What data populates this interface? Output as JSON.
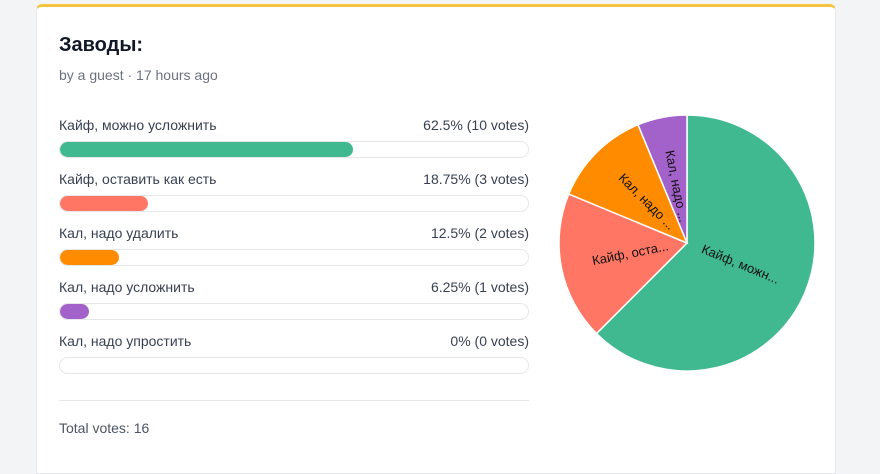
{
  "poll": {
    "title": "Заводы:",
    "meta": "by a guest · 17 hours ago",
    "total": "Total votes: 16"
  },
  "options": [
    {
      "label": "Кайф, можно усложнить",
      "result": "62.5% (10 votes)",
      "pct": 62.5,
      "color": "#41b990",
      "pie_label": "Кайф, можн..."
    },
    {
      "label": "Кайф, оставить как есть",
      "result": "18.75% (3 votes)",
      "pct": 18.75,
      "color": "#ff7665",
      "pie_label": "Кайф, оста..."
    },
    {
      "label": "Кал, надо удалить",
      "result": "12.5% (2 votes)",
      "pct": 12.5,
      "color": "#ff8c00",
      "pie_label": "Кал, надо ..."
    },
    {
      "label": "Кал, надо усложнить",
      "result": "6.25% (1 votes)",
      "pct": 6.25,
      "color": "#a362c9",
      "pie_label": "Кал, надо ..."
    },
    {
      "label": "Кал, надо упростить",
      "result": "0% (0 votes)",
      "pct": 0,
      "color": "#cccccc",
      "pie_label": ""
    }
  ],
  "chart_data": {
    "type": "pie",
    "categories": [
      "Кайф, можно усложнить",
      "Кайф, оставить как есть",
      "Кал, надо удалить",
      "Кал, надо усложнить",
      "Кал, надо упростить"
    ],
    "values": [
      10,
      3,
      2,
      1,
      0
    ]
  }
}
